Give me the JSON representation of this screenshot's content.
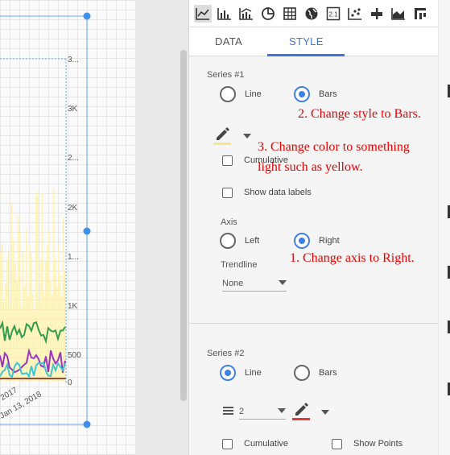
{
  "chart": {
    "y_ticks": [
      "3...",
      "3K",
      "2...",
      "2K",
      "1...",
      "1K",
      "500",
      "0"
    ],
    "x_ticks": [
      ", 2017",
      "Jan 13, 2018"
    ],
    "colors": {
      "bars": "#fdf0b8",
      "series_green": "#2e9e4e",
      "series_purple": "#9b34c2",
      "series_cyan": "#3fc6d6",
      "series_brown": "#9c4a3a",
      "handle": "#3f8fe8"
    }
  },
  "toolbar": {
    "icons": [
      "line-chart-icon",
      "bar-chart-icon",
      "combo-chart-icon",
      "pie-chart-icon",
      "table-icon",
      "geo-map-icon",
      "scorecard-icon",
      "scatter-chart-icon",
      "bullet-chart-icon",
      "area-chart-icon",
      "pivot-table-icon"
    ],
    "scorecard_text": "2.1"
  },
  "tabs": {
    "data": "DATA",
    "style": "STYLE"
  },
  "series1": {
    "title": "Series #1",
    "line": "Line",
    "bars": "Bars",
    "cumulative": "Cumulative",
    "show_data_labels": "Show data labels",
    "axis_label": "Axis",
    "left": "Left",
    "right": "Right",
    "trendline_label": "Trendline",
    "trendline_value": "None",
    "color": "#f7e58a"
  },
  "series2": {
    "title": "Series #2",
    "line": "Line",
    "bars": "Bars",
    "line_weight": "2",
    "cumulative": "Cumulative",
    "show_points": "Show Points",
    "color": "#e53935"
  },
  "annotations": {
    "a2": "2. Change style to Bars.",
    "a3_line1": "3. Change color to something",
    "a3_line2": "light such as yellow.",
    "a1": "1. Change axis to Right."
  }
}
